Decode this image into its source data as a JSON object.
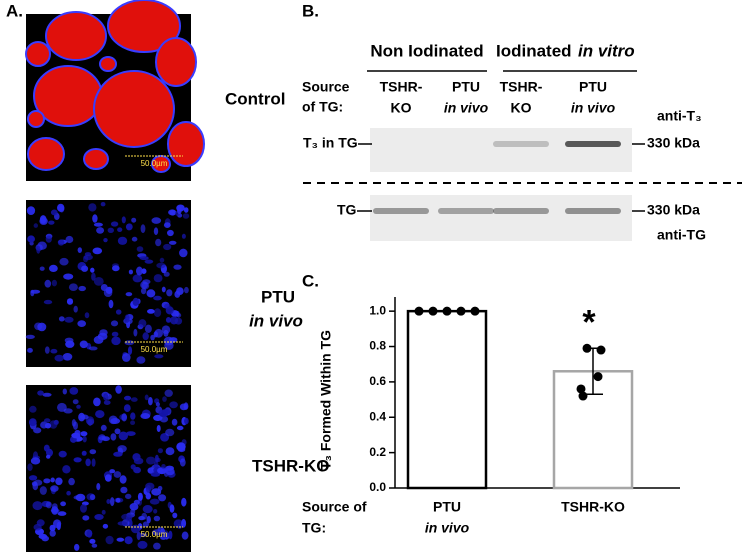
{
  "panel_a": {
    "label": "A.",
    "images": [
      {
        "label": "Control",
        "scale_bar": "50.0µm"
      },
      {
        "label": "PTU",
        "label_note": "in vivo",
        "scale_bar": "50.0µm"
      },
      {
        "label": "TSHR-KO",
        "scale_bar": "50.0µm"
      }
    ]
  },
  "panel_b": {
    "label": "B.",
    "groups": [
      {
        "text": "Non Iodinated"
      },
      {
        "text": "Iodinated",
        "note": "in vitro"
      }
    ],
    "source_label": [
      "Source",
      "of TG:"
    ],
    "lanes": [
      [
        "TSHR-",
        "KO"
      ],
      [
        "PTU",
        "in vivo"
      ],
      [
        "TSHR-",
        "KO"
      ],
      [
        "PTU",
        "in vivo"
      ]
    ],
    "blots": [
      {
        "row_label": "T₃ in TG",
        "size": "330 kDa",
        "antibody": "anti-T₃"
      },
      {
        "row_label": "TG",
        "size": "330 kDa",
        "antibody": "anti-TG"
      }
    ]
  },
  "chart_data": {
    "type": "bar",
    "label": "C.",
    "y_label": "T₃ Formed Within TG",
    "x_label": [
      "Source of",
      "TG:"
    ],
    "categories": [
      "PTU",
      "TSHR-KO"
    ],
    "category_notes": [
      "in vivo",
      null
    ],
    "values": [
      1.0,
      0.66
    ],
    "errors": [
      null,
      0.13
    ],
    "points": [
      [
        1,
        1,
        1,
        1,
        1
      ],
      [
        0.79,
        0.78,
        0.63,
        0.56,
        0.52
      ]
    ],
    "colors": [
      "#000000",
      "#a6a6a6"
    ],
    "point_color": "#000000",
    "ylim": [
      0,
      1.08
    ],
    "yticks": [
      {
        "value": 0,
        "label": "0.0"
      },
      0.2,
      0.4,
      0.6,
      0.8,
      {
        "value": 1,
        "label": "1.0"
      }
    ],
    "annotation": "*"
  }
}
